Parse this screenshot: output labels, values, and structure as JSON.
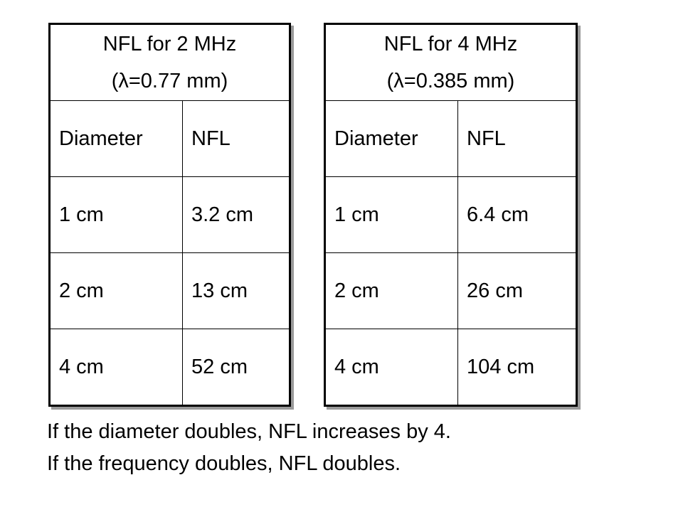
{
  "tables": [
    {
      "title": "NFL for 2 MHz",
      "wavelength": "(λ=0.77 mm)",
      "headers": [
        "Diameter",
        "NFL"
      ],
      "rows": [
        [
          "1 cm",
          "3.2 cm"
        ],
        [
          "2 cm",
          "13 cm"
        ],
        [
          "4 cm",
          "52 cm"
        ]
      ]
    },
    {
      "title": "NFL for 4 MHz",
      "wavelength": "(λ=0.385 mm)",
      "headers": [
        "Diameter",
        "NFL"
      ],
      "rows": [
        [
          "1 cm",
          "6.4 cm"
        ],
        [
          "2 cm",
          "26 cm"
        ],
        [
          "4 cm",
          "104 cm"
        ]
      ]
    }
  ],
  "notes": [
    "If the diameter doubles, NFL increases by 4.",
    "If the frequency doubles, NFL doubles."
  ]
}
